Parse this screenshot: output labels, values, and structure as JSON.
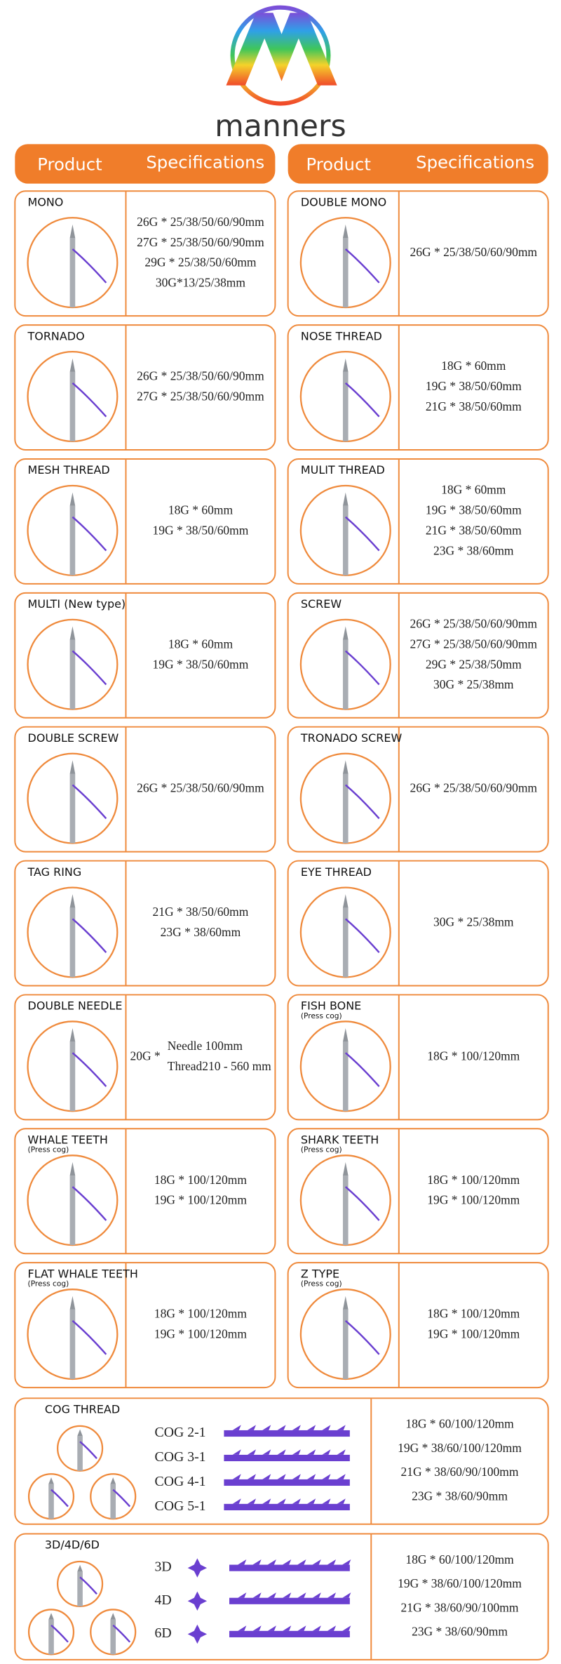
{
  "brand": "manners",
  "header": {
    "product": "Product",
    "specifications": "Specifications"
  },
  "products": [
    {
      "name": "MONO",
      "specs": [
        "26G * 25/38/50/60/90mm",
        "27G * 25/38/50/60/90mm",
        "29G * 25/38/50/60mm",
        "30G*13/25/38mm"
      ]
    },
    {
      "name": "DOUBLE MONO",
      "specs": [
        "26G * 25/38/50/60/90mm"
      ]
    },
    {
      "name": "TORNADO",
      "specs": [
        "26G * 25/38/50/60/90mm",
        "27G * 25/38/50/60/90mm"
      ]
    },
    {
      "name": "NOSE THREAD",
      "specs": [
        "18G * 60mm",
        "19G * 38/50/60mm",
        "21G * 38/50/60mm"
      ]
    },
    {
      "name": "MESH THREAD",
      "specs": [
        "18G * 60mm",
        "19G * 38/50/60mm"
      ]
    },
    {
      "name": "MULIT THREAD",
      "specs": [
        "18G * 60mm",
        "19G *  38/50/60mm",
        "21G * 38/50/60mm",
        "23G * 38/60mm"
      ]
    },
    {
      "name": "MULTI (New type)",
      "specs": [
        "18G * 60mm",
        "19G * 38/50/60mm"
      ]
    },
    {
      "name": "SCREW",
      "specs": [
        "26G * 25/38/50/60/90mm",
        "27G * 25/38/50/60/90mm",
        "29G * 25/38/50mm",
        "30G * 25/38mm"
      ]
    },
    {
      "name": "DOUBLE SCREW",
      "specs": [
        "26G * 25/38/50/60/90mm"
      ]
    },
    {
      "name": "TRONADO SCREW",
      "specs": [
        "26G * 25/38/50/60/90mm"
      ]
    },
    {
      "name": "TAG RING",
      "specs": [
        "21G * 38/50/60mm",
        "23G * 38/60mm"
      ]
    },
    {
      "name": "EYE THREAD",
      "specs": [
        "30G * 25/38mm"
      ]
    },
    {
      "name": "DOUBLE NEEDLE",
      "prefix": "20G *",
      "specs": [
        "Needle 100mm",
        "Thread210 - 560 mm"
      ]
    },
    {
      "name": "FISH BONE",
      "note": "(Press cog)",
      "specs": [
        "18G * 100/120mm"
      ]
    },
    {
      "name": "WHALE TEETH",
      "note": "(Press cog)",
      "specs": [
        "18G * 100/120mm",
        "19G * 100/120mm"
      ]
    },
    {
      "name": "SHARK TEETH",
      "note": "(Press cog)",
      "specs": [
        "18G * 100/120mm",
        "19G * 100/120mm"
      ]
    },
    {
      "name": "FLAT WHALE TEETH",
      "note": "(Press cog)",
      "specs": [
        "18G * 100/120mm",
        "19G * 100/120mm"
      ]
    },
    {
      "name": "Z TYPE",
      "note": "(Press cog)",
      "specs": [
        "18G * 100/120mm",
        "19G * 100/120mm"
      ]
    }
  ],
  "cog_thread": {
    "name": "COG THREAD",
    "types": [
      "COG  2-1",
      "COG  3-1",
      "COG  4-1",
      "COG  5-1"
    ],
    "specs": [
      "18G * 60/100/120mm",
      "19G * 38/60/100/120mm",
      "21G * 38/60/90/100mm",
      "23G * 38/60/90mm"
    ]
  },
  "multi_d": {
    "name": "3D/4D/6D",
    "types": [
      "3D",
      "4D",
      "6D"
    ],
    "specs": [
      "18G * 60/100/120mm",
      "19G * 38/60/100/120mm",
      "21G * 38/60/90/100mm",
      "23G * 38/60/90mm"
    ]
  }
}
